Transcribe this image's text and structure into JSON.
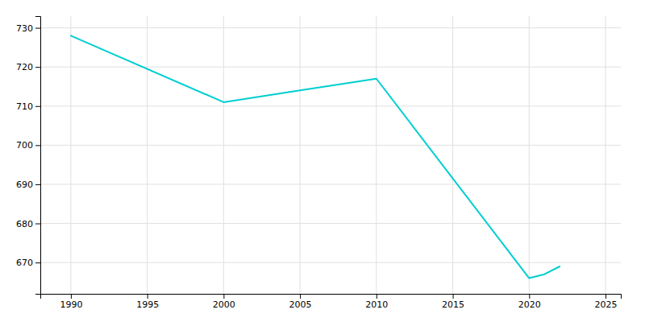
{
  "chart_data": {
    "type": "line",
    "x": [
      1990,
      2000,
      2005,
      2010,
      2020,
      2021,
      2022
    ],
    "values": [
      728,
      711,
      714,
      717,
      666,
      667,
      669
    ],
    "color": "#00CED1",
    "xlim": [
      1988,
      2026
    ],
    "ylim": [
      662,
      733
    ],
    "xticks": [
      1990,
      1995,
      2000,
      2005,
      2010,
      2015,
      2020,
      2025
    ],
    "yticks": [
      670,
      680,
      690,
      700,
      710,
      720,
      730
    ],
    "grid": true
  }
}
